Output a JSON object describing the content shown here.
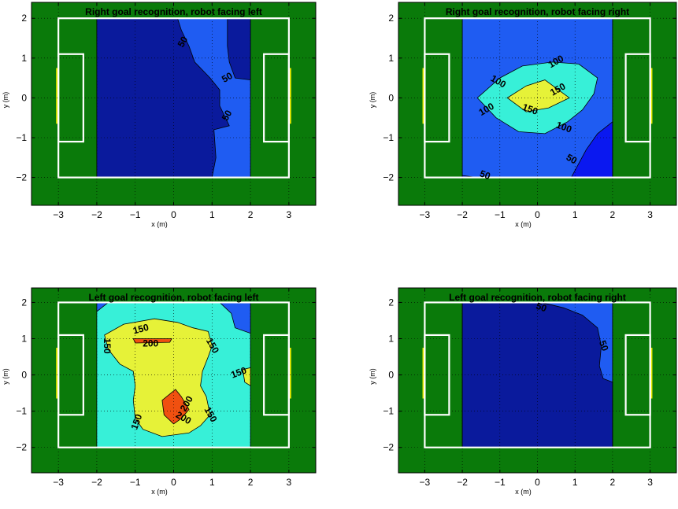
{
  "colors": {
    "field": "#0a7a0a",
    "lines": "#ffffff",
    "goal": "#e8e800",
    "level_0_50": "#0a1a9c",
    "level_50_100": "#1f5cf2",
    "level_dark": "#0a18f0",
    "level_100_150": "#37f0d8",
    "level_150_200": "#e6f238",
    "level_200": "#f05010"
  },
  "chart_data": [
    {
      "type": "contour",
      "title": "Right goal recognition, robot facing left",
      "xlabel": "x (m)",
      "ylabel": "y (m)",
      "xlim": [
        -3.7,
        3.7
      ],
      "ylim": [
        -2.7,
        2.4
      ],
      "xticks": [
        "−3",
        "−2",
        "−1",
        "0",
        "1",
        "2",
        "3"
      ],
      "yticks": [
        "−2",
        "−1",
        "0",
        "1",
        "2"
      ],
      "field": {
        "x": [
          -3,
          3
        ],
        "y": [
          -2,
          2
        ]
      },
      "sampled_region": {
        "x": [
          -2,
          2
        ],
        "y": [
          -2,
          2
        ]
      },
      "levels": [
        50
      ],
      "regions": [
        {
          "level": "50-100",
          "color_key": "level_50_100",
          "poly": [
            [
              -2,
              -2
            ],
            [
              2,
              -2
            ],
            [
              2,
              2
            ],
            [
              -2,
              2
            ]
          ]
        },
        {
          "level": "0-50",
          "color_key": "level_0_50",
          "poly": [
            [
              -2,
              -2
            ],
            [
              1,
              -2
            ],
            [
              1.1,
              -1.5
            ],
            [
              1.05,
              -0.8
            ],
            [
              1.45,
              -0.7
            ],
            [
              1.2,
              -0.2
            ],
            [
              1.2,
              0.2
            ],
            [
              0.95,
              0.5
            ],
            [
              0.55,
              0.9
            ],
            [
              0.4,
              1.3
            ],
            [
              0.2,
              1.7
            ],
            [
              0.1,
              2
            ],
            [
              -2,
              2
            ]
          ]
        },
        {
          "level": "0-50",
          "color_key": "level_0_50",
          "poly": [
            [
              1.4,
              2
            ],
            [
              2,
              2
            ],
            [
              2,
              0.45
            ],
            [
              1.6,
              0.5
            ],
            [
              1.45,
              0.9
            ],
            [
              1.4,
              1.3
            ]
          ]
        }
      ],
      "labels": [
        {
          "text": "50",
          "x": 0.25,
          "y": 1.4,
          "rot": 60
        },
        {
          "text": "50",
          "x": 1.4,
          "y": 0.5,
          "rot": 30
        },
        {
          "text": "50",
          "x": 1.4,
          "y": -0.45,
          "rot": 60
        }
      ]
    },
    {
      "type": "contour",
      "title": "Right goal recognition, robot facing right",
      "xlabel": "x (m)",
      "ylabel": "y (m)",
      "xlim": [
        -3.7,
        3.7
      ],
      "ylim": [
        -2.7,
        2.4
      ],
      "xticks": [
        "−3",
        "−2",
        "−1",
        "0",
        "1",
        "2",
        "3"
      ],
      "yticks": [
        "−2",
        "−1",
        "0",
        "1",
        "2"
      ],
      "field": {
        "x": [
          -3,
          3
        ],
        "y": [
          -2,
          2
        ]
      },
      "sampled_region": {
        "x": [
          -2,
          2
        ],
        "y": [
          -2,
          2
        ]
      },
      "levels": [
        50,
        100,
        150
      ],
      "regions": [
        {
          "level": "50-100",
          "color_key": "level_50_100",
          "poly": [
            [
              -2,
              -2
            ],
            [
              2,
              -2
            ],
            [
              2,
              2
            ],
            [
              -2,
              2
            ]
          ]
        },
        {
          "level": "0-50",
          "color_key": "level_dark",
          "poly": [
            [
              0.9,
              -2
            ],
            [
              2,
              -2
            ],
            [
              2,
              -0.6
            ],
            [
              1.6,
              -0.9
            ],
            [
              1.3,
              -1.3
            ]
          ]
        },
        {
          "level": "0-50",
          "color_key": "level_dark",
          "poly": [
            [
              -2,
              -2
            ],
            [
              -1.6,
              -2
            ],
            [
              -2,
              -1.95
            ]
          ]
        },
        {
          "level": "100-150",
          "color_key": "level_100_150",
          "poly": [
            [
              -1.6,
              0
            ],
            [
              -1.0,
              0.5
            ],
            [
              -0.4,
              0.8
            ],
            [
              0.4,
              0.9
            ],
            [
              1.1,
              0.85
            ],
            [
              1.6,
              0.5
            ],
            [
              1.5,
              0.1
            ],
            [
              1.2,
              -0.3
            ],
            [
              0.8,
              -0.6
            ],
            [
              0.2,
              -0.9
            ],
            [
              -0.5,
              -0.85
            ],
            [
              -1.1,
              -0.5
            ]
          ]
        },
        {
          "level": "150-200",
          "color_key": "level_150_200",
          "poly": [
            [
              -0.8,
              0
            ],
            [
              -0.3,
              0.3
            ],
            [
              0.2,
              0.45
            ],
            [
              0.85,
              0
            ],
            [
              0.3,
              -0.25
            ],
            [
              -0.3,
              -0.35
            ]
          ]
        }
      ],
      "labels": [
        {
          "text": "100",
          "x": -1.05,
          "y": 0.4,
          "rot": -30
        },
        {
          "text": "100",
          "x": 0.5,
          "y": 0.9,
          "rot": 30
        },
        {
          "text": "150",
          "x": 0.55,
          "y": 0.2,
          "rot": 30
        },
        {
          "text": "150",
          "x": -0.2,
          "y": -0.3,
          "rot": -20
        },
        {
          "text": "100",
          "x": -1.35,
          "y": -0.3,
          "rot": 30
        },
        {
          "text": "100",
          "x": 0.7,
          "y": -0.75,
          "rot": -20
        },
        {
          "text": "50",
          "x": 0.9,
          "y": -1.55,
          "rot": -30
        },
        {
          "text": "50",
          "x": -1.4,
          "y": -1.95,
          "rot": -20
        }
      ]
    },
    {
      "type": "contour",
      "title": "Left goal recognition, robot facing left",
      "xlabel": "x (m)",
      "ylabel": "y (m)",
      "xlim": [
        -3.7,
        3.7
      ],
      "ylim": [
        -2.7,
        2.4
      ],
      "xticks": [
        "−3",
        "−2",
        "−1",
        "0",
        "1",
        "2",
        "3"
      ],
      "yticks": [
        "−2",
        "−1",
        "0",
        "1",
        "2"
      ],
      "field": {
        "x": [
          -3,
          3
        ],
        "y": [
          -2,
          2
        ]
      },
      "sampled_region": {
        "x": [
          -2,
          2
        ],
        "y": [
          -2,
          2
        ]
      },
      "levels": [
        150,
        200
      ],
      "regions": [
        {
          "level": "50-100",
          "color_key": "level_50_100",
          "poly": [
            [
              -2,
              -2
            ],
            [
              2,
              -2
            ],
            [
              2,
              2
            ],
            [
              -2,
              2
            ]
          ]
        },
        {
          "level": "100-150",
          "color_key": "level_100_150",
          "poly": [
            [
              -2,
              -2
            ],
            [
              2,
              -2
            ],
            [
              2,
              1.15
            ],
            [
              1.6,
              1.3
            ],
            [
              1.5,
              1.7
            ],
            [
              1.2,
              2
            ],
            [
              -1.7,
              2
            ],
            [
              -2,
              1.75
            ]
          ]
        },
        {
          "level": "150-200",
          "color_key": "level_150_200",
          "poly": [
            [
              -1.8,
              1.1
            ],
            [
              -1.3,
              1.4
            ],
            [
              -0.5,
              1.55
            ],
            [
              0.1,
              1.45
            ],
            [
              0.5,
              1.3
            ],
            [
              0.9,
              1.2
            ],
            [
              1.0,
              0.8
            ],
            [
              0.9,
              0.5
            ],
            [
              0.75,
              0.1
            ],
            [
              0.7,
              -0.3
            ],
            [
              0.85,
              -0.6
            ],
            [
              0.95,
              -1.1
            ],
            [
              0.7,
              -1.4
            ],
            [
              0.4,
              -1.6
            ],
            [
              -0.3,
              -1.7
            ],
            [
              -0.8,
              -1.5
            ],
            [
              -1.0,
              -1.2
            ],
            [
              -1.05,
              -0.7
            ],
            [
              -1.0,
              -0.3
            ],
            [
              -1.05,
              0.1
            ],
            [
              -1.4,
              0.3
            ],
            [
              -1.7,
              0.7
            ]
          ]
        },
        {
          "level": "150-200",
          "color_key": "level_150_200",
          "poly": [
            [
              1.8,
              0.15
            ],
            [
              2,
              0.2
            ],
            [
              2,
              -0.3
            ],
            [
              1.85,
              -0.2
            ]
          ]
        },
        {
          "level": "200+",
          "color_key": "level_200",
          "poly": [
            [
              -1.05,
              1.0
            ],
            [
              -0.05,
              1.0
            ],
            [
              -0.1,
              0.9
            ],
            [
              -1.0,
              0.88
            ]
          ]
        },
        {
          "level": "200+",
          "color_key": "level_200",
          "poly": [
            [
              -0.3,
              -0.7
            ],
            [
              0.05,
              -0.4
            ],
            [
              0.2,
              -0.6
            ],
            [
              0.4,
              -0.95
            ],
            [
              0.2,
              -1.2
            ],
            [
              0.0,
              -1.35
            ],
            [
              -0.25,
              -1.1
            ]
          ]
        }
      ],
      "labels": [
        {
          "text": "150",
          "x": -0.85,
          "y": 1.25,
          "rot": 15
        },
        {
          "text": "200",
          "x": -0.6,
          "y": 0.85,
          "rot": 0
        },
        {
          "text": "150",
          "x": 1.0,
          "y": 0.8,
          "rot": -60
        },
        {
          "text": "150",
          "x": -1.75,
          "y": 0.8,
          "rot": -90
        },
        {
          "text": "150",
          "x": 1.7,
          "y": 0.05,
          "rot": 20
        },
        {
          "text": "200",
          "x": 0.35,
          "y": -0.8,
          "rot": 60
        },
        {
          "text": "200",
          "x": 0.25,
          "y": -1.2,
          "rot": -30
        },
        {
          "text": "150",
          "x": 0.95,
          "y": -1.1,
          "rot": -60
        },
        {
          "text": "150",
          "x": -0.95,
          "y": -1.3,
          "rot": 70
        }
      ]
    },
    {
      "type": "contour",
      "title": "Left goal recognition, robot facing right",
      "xlabel": "x (m)",
      "ylabel": "y (m)",
      "xlim": [
        -3.7,
        3.7
      ],
      "ylim": [
        -2.7,
        2.4
      ],
      "xticks": [
        "−3",
        "−2",
        "−1",
        "0",
        "1",
        "2",
        "3"
      ],
      "yticks": [
        "−2",
        "−1",
        "0",
        "1",
        "2"
      ],
      "field": {
        "x": [
          -3,
          3
        ],
        "y": [
          -2,
          2
        ]
      },
      "sampled_region": {
        "x": [
          -2,
          2
        ],
        "y": [
          -2,
          2
        ]
      },
      "levels": [
        50
      ],
      "regions": [
        {
          "level": "50-100",
          "color_key": "level_50_100",
          "poly": [
            [
              -2,
              -2
            ],
            [
              2,
              -2
            ],
            [
              2,
              2
            ],
            [
              -2,
              2
            ]
          ]
        },
        {
          "level": "0-50",
          "color_key": "level_0_50",
          "poly": [
            [
              -2,
              -2
            ],
            [
              2,
              -2
            ],
            [
              2,
              -0.2
            ],
            [
              1.75,
              -0.1
            ],
            [
              1.65,
              0.25
            ],
            [
              1.7,
              0.8
            ],
            [
              1.6,
              1.3
            ],
            [
              1.2,
              1.65
            ],
            [
              0.7,
              1.85
            ],
            [
              0.3,
              1.95
            ],
            [
              0.05,
              2
            ],
            [
              -2,
              2
            ]
          ]
        }
      ],
      "labels": [
        {
          "text": "50",
          "x": 0.1,
          "y": 1.85,
          "rot": -20
        },
        {
          "text": "50",
          "x": 1.75,
          "y": 0.8,
          "rot": -70
        }
      ]
    }
  ]
}
